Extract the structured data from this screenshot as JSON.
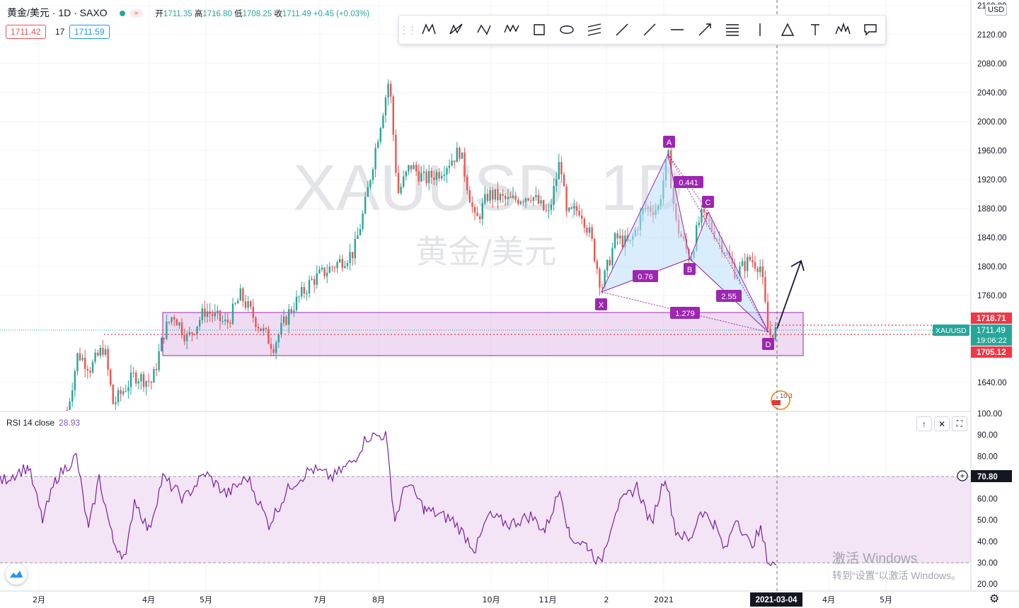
{
  "header": {
    "symbol_title": "黄金/美元 · 1D · SAXO",
    "status_badge": "≈",
    "ohlc": {
      "open_label": "开",
      "open": "1711.35",
      "high_label": "高",
      "high": "1716.80",
      "low_label": "低",
      "low": "1708.25",
      "close_label": "收",
      "close": "1711.49",
      "change": "+0.45 (+0.03%)"
    },
    "bid": "1711.42",
    "spread": "17",
    "ask": "1711.59"
  },
  "toolbar": {
    "icons": [
      "xabcd-pattern-icon",
      "cypher-pattern-icon",
      "abcd-pattern-icon",
      "three-drives-icon",
      "rectangle-icon",
      "ellipse-icon",
      "parallel-channel-icon",
      "trend-line-icon",
      "ray-icon",
      "horizontal-line-icon",
      "arrow-line-icon",
      "fib-retracement-icon",
      "vertical-line-icon",
      "triangle-icon",
      "text-icon",
      "head-shoulders-icon",
      "callout-icon"
    ]
  },
  "watermark": {
    "ticker": "XAUUSD, 1D",
    "name": "黄金/美元"
  },
  "price_axis": {
    "currency": "USD",
    "ticks": [
      "2160.00",
      "2120.00",
      "2080.00",
      "2040.00",
      "2000.00",
      "1960.00",
      "1920.00",
      "1880.00",
      "1840.00",
      "1800.00",
      "1760.00",
      "1640.00"
    ],
    "last_symbol": "XAUUSD",
    "last_price": "1711.49",
    "countdown": "19:06:22",
    "upper_level": "1718.71",
    "lower_level": "1705.12"
  },
  "time_axis": {
    "ticks": [
      "2月",
      "4月",
      "5月",
      "7月",
      "8月",
      "10月",
      "11月",
      "2",
      "2021",
      "4月",
      "5月"
    ],
    "cursor_date": "2021-03-04"
  },
  "pattern": {
    "points": [
      "X",
      "A",
      "B",
      "C",
      "D"
    ],
    "ratios": [
      "0.441",
      "0.76",
      "2.55",
      "1.279"
    ]
  },
  "event_badge": "10 3",
  "rsi": {
    "label": "RSI 14 close",
    "value": "28.93",
    "ticks": [
      "100.00",
      "90.00",
      "80.00",
      "60.00",
      "50.00",
      "40.00",
      "30.00",
      "20.00"
    ],
    "crosshair_value": "70.80",
    "pane_buttons": [
      "↑",
      "✕",
      "⛶"
    ]
  },
  "windows_watermark": {
    "line1": "激活 Windows",
    "line2": "转到“设置”以激活 Windows。"
  },
  "colors": {
    "up": "#26a69a",
    "down": "#ef5350",
    "pattern": "#9c27b0",
    "zone": "#e1bee7",
    "rsi": "#7b1fa2",
    "rsi_band": "#f3e5f5"
  },
  "chart_data": {
    "type": "candlestick",
    "title": "黄金/美元 · 1D · SAXO",
    "ylim": [
      1600,
      2160
    ],
    "x_range": [
      "2020-01",
      "2021-05"
    ],
    "key_levels": [
      1718.71,
      1705.12
    ],
    "support_zone": [
      1690,
      1750
    ],
    "harmonic_pattern": {
      "X": {
        "date": "2020-11-30",
        "price": 1765
      },
      "A": {
        "date": "2021-01-06",
        "price": 1958
      },
      "B": {
        "date": "2021-01-18",
        "price": 1810
      },
      "C": {
        "date": "2021-01-25",
        "price": 1875
      },
      "D": {
        "date": "2021-03-03",
        "price": 1705
      }
    },
    "rsi": {
      "period": 14,
      "last": 28.93,
      "bands": [
        30,
        70
      ],
      "ylim": [
        20,
        100
      ]
    }
  }
}
